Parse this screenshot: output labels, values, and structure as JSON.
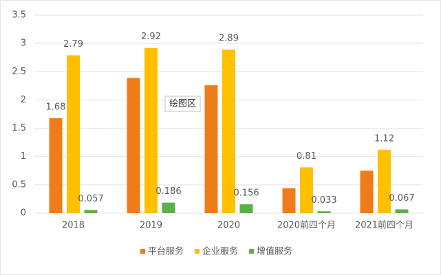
{
  "chart_data": {
    "type": "bar",
    "categories": [
      "2018",
      "2019",
      "2020",
      "2020前四个月",
      "2021前四个月"
    ],
    "series": [
      {
        "name": "平台服务",
        "color": "#ee7d19",
        "values": [
          1.68,
          2.39,
          2.26,
          0.44,
          0.75
        ],
        "value_labels": [
          "1.68",
          null,
          null,
          null,
          null
        ]
      },
      {
        "name": "企业服务",
        "color": "#ffc000",
        "values": [
          2.79,
          2.92,
          2.89,
          0.81,
          1.12
        ],
        "value_labels": [
          "2.79",
          "2.92",
          "2.89",
          "0.81",
          "1.12"
        ]
      },
      {
        "name": "增值服务",
        "color": "#5cb04b",
        "values": [
          0.057,
          0.186,
          0.156,
          0.033,
          0.067
        ],
        "value_labels": [
          "0.057",
          "0.186",
          "0.156",
          "0.033",
          "0.067"
        ]
      }
    ],
    "ylim": [
      0,
      3.5
    ],
    "yticks": [
      0,
      0.5,
      1,
      1.5,
      2,
      2.5,
      3,
      3.5
    ],
    "grid": true,
    "legend": "bottom",
    "annotation": "绘图区"
  }
}
